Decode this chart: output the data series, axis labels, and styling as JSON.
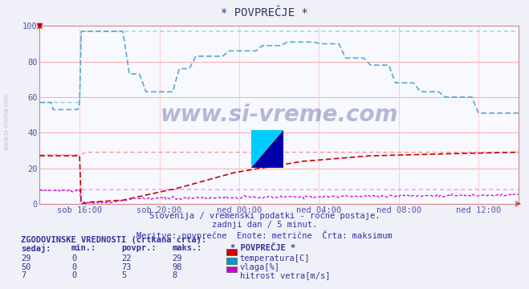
{
  "title": "* POVPREČJE *",
  "bg_color": "#f0f0f8",
  "plot_bg_color": "#f8f8ff",
  "grid_color_h": "#ffaaaa",
  "grid_color_v": "#ffcccc",
  "xlim": [
    0,
    288
  ],
  "ylim": [
    0,
    100
  ],
  "yticks": [
    0,
    20,
    40,
    60,
    80,
    100
  ],
  "xtick_labels": [
    "sob 16:00",
    "sob 20:00",
    "ned 00:00",
    "ned 04:00",
    "ned 08:00",
    "ned 12:00"
  ],
  "xtick_positions": [
    24,
    72,
    120,
    168,
    216,
    264
  ],
  "subtitle1": "Slovenija / vremenski podatki - ročne postaje.",
  "subtitle2": "zadnji dan / 5 minut.",
  "subtitle3": "Meritve: povprečne  Enote: metrične  Črta: maksimum",
  "watermark": "www.si-vreme.com",
  "legend_title": "* POVPREČJE *",
  "hist_title": "ZGODOVINSKE VREDNOSTI (črtkana črta):",
  "hist_headers": [
    "sedaj:",
    "min.:",
    "povpr.:",
    "maks.:"
  ],
  "hist_data": [
    {
      "sedaj": 29,
      "min": 0,
      "povpr": 22,
      "maks": 29,
      "label": "temperatura[C]",
      "color": "#cc0000"
    },
    {
      "sedaj": 50,
      "min": 0,
      "povpr": 73,
      "maks": 98,
      "label": "vlaga[%]",
      "color": "#0099cc"
    },
    {
      "sedaj": 7,
      "min": 0,
      "povpr": 5,
      "maks": 8,
      "label": "hitrost vetra[m/s]",
      "color": "#cc00cc"
    }
  ],
  "temp_color": "#cc0000",
  "humidity_color": "#55aacc",
  "wind_color": "#cc00cc",
  "temp_max_color": "#ff8888",
  "humidity_max_color": "#88ccee",
  "wind_max_color": "#ee88ee"
}
